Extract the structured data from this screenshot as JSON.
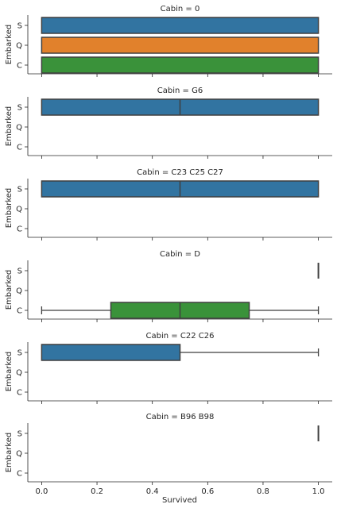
{
  "chart_data": {
    "type": "box",
    "layout": "facet-rows",
    "xlabel": "Survived",
    "ylabel": "Embarked",
    "xlim": [
      -0.05,
      1.05
    ],
    "xticks": [
      0.0,
      0.2,
      0.4,
      0.6,
      0.8,
      1.0
    ],
    "xtick_labels": [
      "0.0",
      "0.2",
      "0.4",
      "0.6",
      "0.8",
      "1.0"
    ],
    "categories": [
      "S",
      "Q",
      "C"
    ],
    "category_colors": {
      "S": "#3274a1",
      "Q": "#e1812c",
      "C": "#3a923a"
    },
    "box_edge_color": "#3f3f3f",
    "facets": [
      {
        "title": "Cabin = 0",
        "boxes": [
          {
            "category": "S",
            "min": 0,
            "q1": 0,
            "median": 0,
            "q3": 1,
            "max": 1
          },
          {
            "category": "Q",
            "min": 0,
            "q1": 0,
            "median": 0,
            "q3": 1,
            "max": 1
          },
          {
            "category": "C",
            "min": 0,
            "q1": 0,
            "median": 0,
            "q3": 1,
            "max": 1
          }
        ]
      },
      {
        "title": "Cabin = G6",
        "boxes": [
          {
            "category": "S",
            "min": 0,
            "q1": 0,
            "median": 0.5,
            "q3": 1,
            "max": 1
          }
        ]
      },
      {
        "title": "Cabin = C23 C25 C27",
        "boxes": [
          {
            "category": "S",
            "min": 0,
            "q1": 0,
            "median": 0.5,
            "q3": 1,
            "max": 1
          }
        ]
      },
      {
        "title": "Cabin = D",
        "boxes": [
          {
            "category": "S",
            "min": 1,
            "q1": 1,
            "median": 1,
            "q3": 1,
            "max": 1
          },
          {
            "category": "C",
            "min": 0,
            "q1": 0.25,
            "median": 0.5,
            "q3": 0.75,
            "max": 1
          }
        ]
      },
      {
        "title": "Cabin = C22 C26",
        "boxes": [
          {
            "category": "S",
            "min": 0,
            "q1": 0,
            "median": 0,
            "q3": 0.5,
            "max": 1
          }
        ]
      },
      {
        "title": "Cabin = B96 B98",
        "boxes": [
          {
            "category": "S",
            "min": 1,
            "q1": 1,
            "median": 1,
            "q3": 1,
            "max": 1
          }
        ]
      }
    ]
  }
}
